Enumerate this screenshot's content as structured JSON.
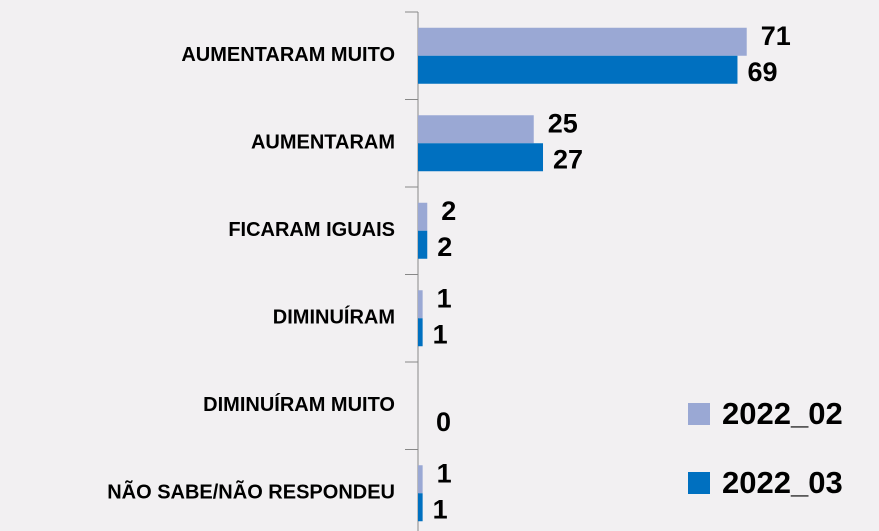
{
  "chart_data": {
    "type": "bar",
    "orientation": "horizontal",
    "categories": [
      "AUMENTARAM MUITO",
      "AUMENTARAM",
      "FICARAM IGUAIS",
      "DIMINUÍRAM",
      "DIMINUÍRAM MUITO",
      "NÃO SABE/NÃO RESPONDEU"
    ],
    "series": [
      {
        "name": "2022_02",
        "color": "#9aa8d4",
        "values": [
          71,
          25,
          2,
          1,
          null,
          1
        ]
      },
      {
        "name": "2022_03",
        "color": "#0070c0",
        "values": [
          69,
          27,
          2,
          1,
          0,
          1
        ]
      }
    ],
    "xlim": [
      0,
      100
    ],
    "legend": "right"
  }
}
